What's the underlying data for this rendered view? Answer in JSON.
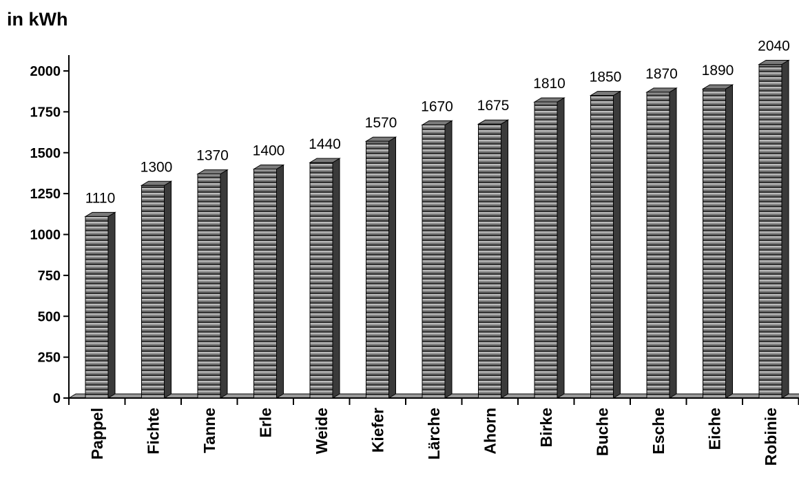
{
  "chart_data": {
    "type": "bar",
    "unit_label": "in kWh",
    "categories": [
      "Pappel",
      "Fichte",
      "Tanne",
      "Erle",
      "Weide",
      "Kiefer",
      "Lärche",
      "Ahorn",
      "Birke",
      "Buche",
      "Esche",
      "Eiche",
      "Robinie"
    ],
    "values": [
      1110,
      1300,
      1370,
      1400,
      1440,
      1570,
      1670,
      1675,
      1810,
      1850,
      1870,
      1890,
      2040
    ],
    "data_labels": [
      "1110",
      "1300",
      "1370",
      "1400",
      "1440",
      "1570",
      "1670",
      "1675",
      "1810",
      "1850",
      "1870",
      "1890",
      "2040"
    ],
    "yticks": [
      0,
      250,
      500,
      750,
      1000,
      1250,
      1500,
      1750,
      2000
    ],
    "ytick_labels": [
      "0",
      "250",
      "500",
      "750",
      "1000",
      "1250",
      "1500",
      "1750",
      "2000"
    ],
    "ylim": [
      0,
      2000
    ],
    "grid": false,
    "legend": "none",
    "style": "3d-bar",
    "colors": {
      "bar_light": "#d6d6d6",
      "bar_dark": "#1e1e1e",
      "bar_side": "#3a3a3a",
      "bar_top": "#7a7a7a",
      "stripe": "#2b2b2b",
      "axis": "#000000",
      "floor": "#9a9a9a"
    }
  }
}
